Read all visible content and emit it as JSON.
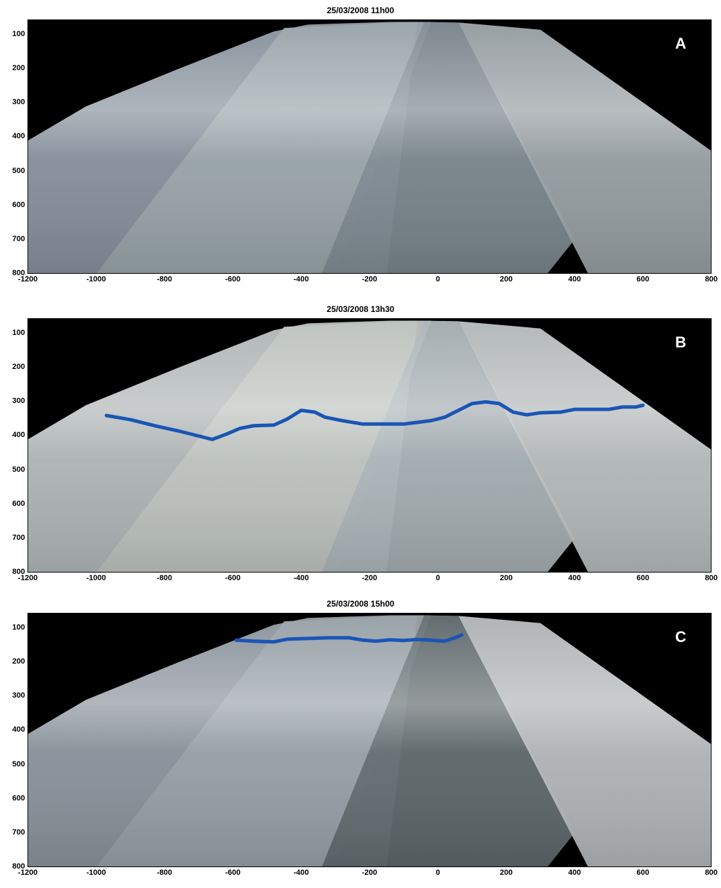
{
  "colors": {
    "shoreline": "#1a55b5",
    "background_outside": "#000000"
  },
  "y_ticks": [
    "100",
    "200",
    "300",
    "400",
    "500",
    "600",
    "700",
    "800"
  ],
  "x_ticks": [
    "-1200",
    "-1000",
    "-800",
    "-600",
    "-400",
    "-200",
    "0",
    "200",
    "400",
    "600",
    "800"
  ],
  "panels": [
    {
      "title": "25/03/2008 11h00",
      "letter": "A",
      "has_shoreline": false,
      "shoreline": []
    },
    {
      "title": "25/03/2008 13h30",
      "letter": "B",
      "has_shoreline": true,
      "shoreline": [
        [
          -970,
          340
        ],
        [
          -900,
          352
        ],
        [
          -820,
          372
        ],
        [
          -760,
          385
        ],
        [
          -700,
          400
        ],
        [
          -660,
          410
        ],
        [
          -620,
          395
        ],
        [
          -580,
          378
        ],
        [
          -540,
          370
        ],
        [
          -480,
          368
        ],
        [
          -440,
          350
        ],
        [
          -400,
          325
        ],
        [
          -360,
          330
        ],
        [
          -330,
          345
        ],
        [
          -280,
          355
        ],
        [
          -220,
          365
        ],
        [
          -160,
          365
        ],
        [
          -100,
          365
        ],
        [
          -60,
          360
        ],
        [
          -20,
          355
        ],
        [
          20,
          345
        ],
        [
          60,
          325
        ],
        [
          100,
          305
        ],
        [
          140,
          300
        ],
        [
          180,
          305
        ],
        [
          220,
          330
        ],
        [
          260,
          338
        ],
        [
          300,
          332
        ],
        [
          360,
          330
        ],
        [
          400,
          322
        ],
        [
          460,
          322
        ],
        [
          500,
          322
        ],
        [
          540,
          315
        ],
        [
          580,
          315
        ],
        [
          600,
          310
        ]
      ]
    },
    {
      "title": "25/03/2008 15h00",
      "letter": "C",
      "has_shoreline": true,
      "shoreline": [
        [
          -590,
          135
        ],
        [
          -540,
          138
        ],
        [
          -480,
          140
        ],
        [
          -440,
          132
        ],
        [
          -380,
          130
        ],
        [
          -320,
          128
        ],
        [
          -260,
          128
        ],
        [
          -220,
          135
        ],
        [
          -180,
          138
        ],
        [
          -140,
          134
        ],
        [
          -100,
          136
        ],
        [
          -60,
          133
        ],
        [
          -20,
          135
        ],
        [
          20,
          138
        ],
        [
          50,
          128
        ],
        [
          70,
          120
        ]
      ]
    }
  ]
}
